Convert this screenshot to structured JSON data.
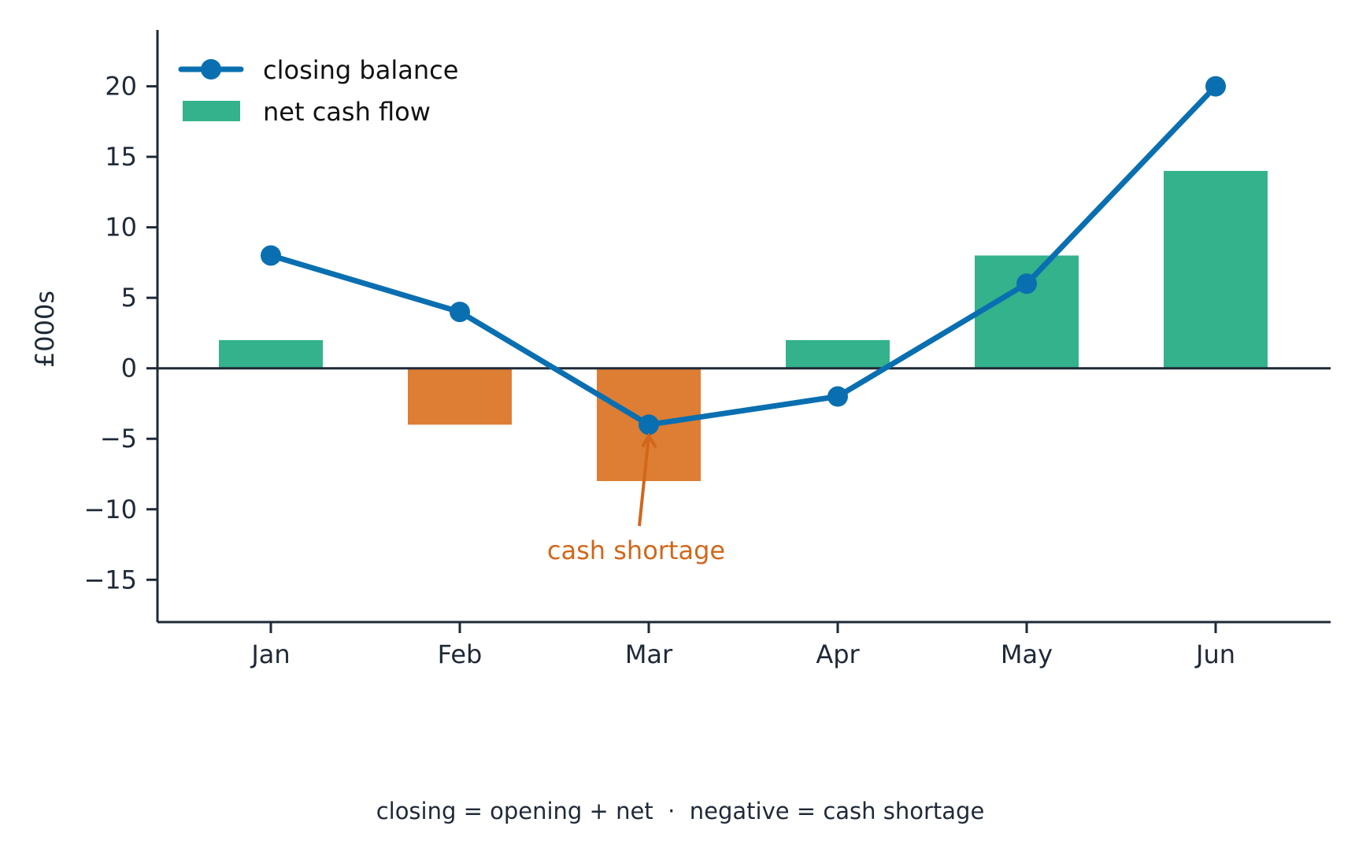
{
  "chart_data": {
    "type": "bar",
    "categories": [
      "Jan",
      "Feb",
      "Mar",
      "Apr",
      "May",
      "Jun"
    ],
    "ylim": [
      -18,
      24
    ],
    "yticks": [
      -15,
      -10,
      -5,
      0,
      5,
      10,
      15,
      20
    ],
    "ytick_labels": [
      "−15",
      "−10",
      "−5",
      "0",
      "5",
      "10",
      "15",
      "20"
    ],
    "ylabel": "£000s",
    "xlabel": "",
    "grid": false,
    "legend_position": "top-left",
    "series": [
      {
        "name": "net cash flow",
        "kind": "bar",
        "values": [
          2,
          -4,
          -8,
          2,
          8,
          14
        ]
      },
      {
        "name": "closing balance",
        "kind": "line",
        "values": [
          8,
          4,
          -4,
          -2,
          6,
          20
        ]
      }
    ],
    "annotation": {
      "text": "cash shortage",
      "target_category": "Mar",
      "target_value": -4
    },
    "colors": {
      "positive": "#33b28c",
      "negative": "#dd7e34",
      "line": "#0a6fb0",
      "annotation": "#d1671a",
      "axis": "#1f2937"
    },
    "footnote": "closing = opening + net  ·  negative = cash shortage"
  }
}
